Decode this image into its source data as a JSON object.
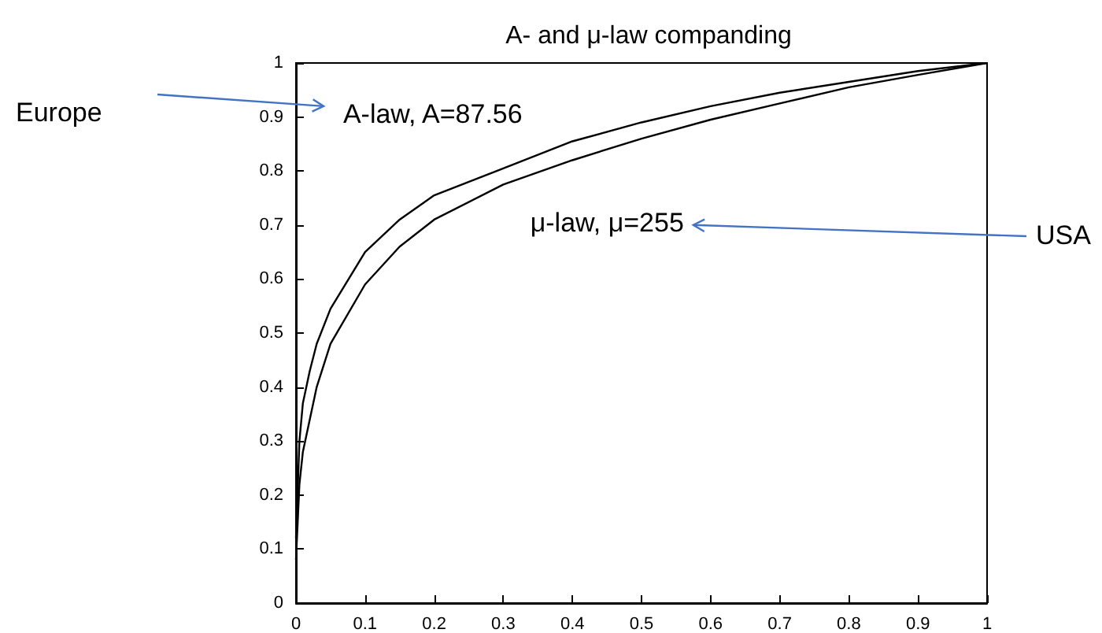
{
  "chart_data": {
    "type": "line",
    "title": "A- and μ-law companding",
    "series": [
      {
        "name": "A-law, A=87.56",
        "color": "#000000",
        "x": [
          0,
          0.005,
          0.01,
          0.02,
          0.03,
          0.05,
          0.1,
          0.15,
          0.2,
          0.3,
          0.4,
          0.5,
          0.6,
          0.7,
          0.8,
          0.9,
          1
        ],
        "values": [
          0.12,
          0.3,
          0.37,
          0.43,
          0.48,
          0.545,
          0.65,
          0.71,
          0.755,
          0.805,
          0.855,
          0.89,
          0.92,
          0.945,
          0.965,
          0.985,
          1
        ]
      },
      {
        "name": "μ-law, μ=255",
        "color": "#000000",
        "x": [
          0,
          0.005,
          0.01,
          0.02,
          0.03,
          0.05,
          0.1,
          0.15,
          0.2,
          0.3,
          0.4,
          0.5,
          0.6,
          0.7,
          0.8,
          0.9,
          1
        ],
        "values": [
          0.08,
          0.22,
          0.28,
          0.34,
          0.4,
          0.48,
          0.59,
          0.66,
          0.71,
          0.775,
          0.82,
          0.86,
          0.895,
          0.925,
          0.955,
          0.978,
          1
        ]
      }
    ],
    "xlim": [
      0,
      1
    ],
    "xticks": [
      0,
      0.1,
      0.2,
      0.3,
      0.4,
      0.5,
      0.6,
      0.7,
      0.8,
      0.9,
      1
    ],
    "ylim": [
      0,
      1
    ],
    "yticks": [
      0,
      0.1,
      0.2,
      0.3,
      0.4,
      0.5,
      0.6,
      0.7,
      0.8,
      0.9,
      1
    ],
    "annotations": [
      "Europe",
      "USA"
    ],
    "grid": false,
    "legend": false,
    "marker": "none",
    "line_style": "solid"
  }
}
